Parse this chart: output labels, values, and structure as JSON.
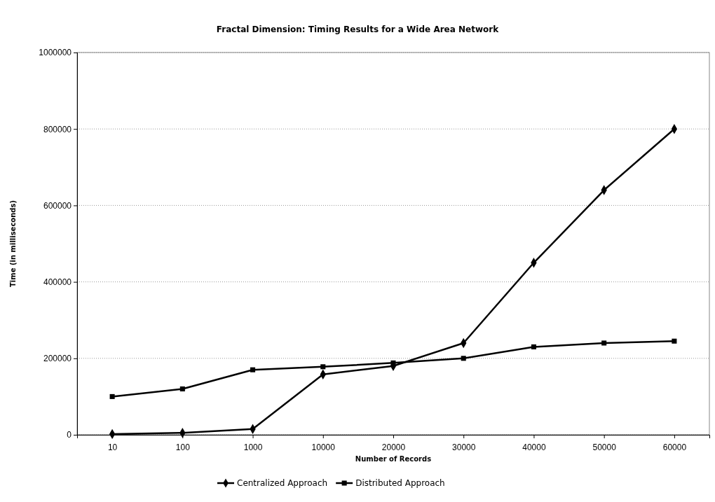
{
  "chart_data": {
    "type": "line",
    "title": "Fractal Dimension: Timing Results for a Wide Area Network",
    "xlabel": "Number of Records",
    "ylabel": "Time (in milliseconds)",
    "categories": [
      "10",
      "100",
      "1000",
      "10000",
      "20000",
      "30000",
      "40000",
      "50000",
      "60000"
    ],
    "series": [
      {
        "name": "Centralized Approach",
        "color": "#000000",
        "marker": "diamond",
        "values": [
          2000,
          5000,
          15000,
          158000,
          180000,
          240000,
          450000,
          640000,
          800000
        ]
      },
      {
        "name": "Distributed Approach",
        "color": "#000000",
        "marker": "square",
        "values": [
          100000,
          120000,
          170000,
          178000,
          188000,
          200000,
          230000,
          240000,
          245000
        ]
      }
    ],
    "ylim": [
      0,
      1000000
    ],
    "yticks": [
      0,
      200000,
      400000,
      600000,
      800000,
      1000000
    ],
    "grid": "y",
    "legend": "bottom"
  }
}
